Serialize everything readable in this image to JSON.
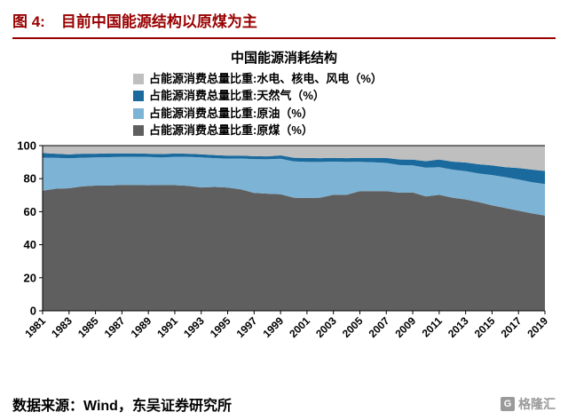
{
  "header": {
    "figure_label": "图 4:",
    "title": "目前中国能源结构以原煤为主",
    "accent_color": "#990000"
  },
  "chart": {
    "title": "中国能源消耗结构"
  },
  "source": {
    "text": "数据来源：Wind，东吴证券研究所"
  },
  "logo": {
    "glyph": "G",
    "text": "格隆汇"
  },
  "chart_data": {
    "type": "area",
    "stacked": true,
    "title": "中国能源消耗结构",
    "xlabel": "",
    "ylabel": "",
    "ylim": [
      0,
      100
    ],
    "y_ticks": [
      0,
      20,
      40,
      60,
      80,
      100
    ],
    "grid": false,
    "legend_position": "top",
    "legend_order": [
      3,
      2,
      1,
      0
    ],
    "x": [
      1981,
      1982,
      1983,
      1984,
      1985,
      1986,
      1987,
      1988,
      1989,
      1990,
      1991,
      1992,
      1993,
      1994,
      1995,
      1996,
      1997,
      1998,
      1999,
      2000,
      2001,
      2002,
      2003,
      2004,
      2005,
      2006,
      2007,
      2008,
      2009,
      2010,
      2011,
      2012,
      2013,
      2014,
      2015,
      2016,
      2017,
      2018,
      2019
    ],
    "x_tick_labels": [
      1981,
      1983,
      1985,
      1987,
      1989,
      1991,
      1993,
      1995,
      1997,
      1999,
      2001,
      2003,
      2005,
      2007,
      2009,
      2011,
      2013,
      2015,
      2017,
      2019
    ],
    "series": [
      {
        "name": "占能源消费总量比重:原煤（%）",
        "color": "#5f5f5f",
        "values": [
          72.7,
          73.9,
          74.2,
          75.3,
          75.8,
          75.8,
          76.2,
          76.2,
          76.0,
          76.2,
          76.1,
          75.7,
          74.7,
          75.0,
          74.6,
          73.5,
          71.4,
          70.9,
          70.6,
          68.5,
          68.3,
          68.5,
          70.2,
          70.2,
          72.4,
          72.4,
          72.5,
          71.5,
          71.6,
          69.2,
          70.2,
          68.5,
          67.4,
          65.8,
          63.8,
          62.2,
          60.6,
          59.0,
          57.7
        ]
      },
      {
        "name": "占能源消费总量比重:原油（%）",
        "color": "#7db3d5",
        "values": [
          20.0,
          18.7,
          18.1,
          17.4,
          17.1,
          17.2,
          17.0,
          17.0,
          17.1,
          16.6,
          17.1,
          17.5,
          18.2,
          17.4,
          17.5,
          18.7,
          20.4,
          20.8,
          21.5,
          22.0,
          21.8,
          21.6,
          20.1,
          19.9,
          17.8,
          17.5,
          17.0,
          16.7,
          16.4,
          17.4,
          16.8,
          17.0,
          17.1,
          17.3,
          18.4,
          18.7,
          18.9,
          18.9,
          19.0
        ]
      },
      {
        "name": "占能源消费总量比重:天然气（%）",
        "color": "#1a6a9d",
        "values": [
          2.8,
          2.5,
          2.4,
          2.4,
          2.2,
          2.3,
          2.1,
          2.1,
          2.0,
          2.1,
          2.0,
          1.9,
          1.9,
          1.9,
          1.8,
          1.8,
          1.8,
          1.8,
          2.0,
          2.2,
          2.4,
          2.3,
          2.3,
          2.3,
          2.4,
          2.7,
          3.0,
          3.4,
          3.5,
          4.0,
          4.6,
          4.8,
          5.3,
          5.6,
          5.8,
          6.1,
          6.9,
          7.6,
          8.0
        ]
      },
      {
        "name": "占能源消费总量比重:水电、核电、风电（%）",
        "color": "#bfbfbf",
        "values": [
          4.5,
          4.9,
          5.3,
          4.9,
          4.9,
          4.7,
          4.7,
          4.7,
          4.9,
          5.1,
          4.8,
          4.9,
          5.2,
          5.7,
          6.1,
          6.0,
          6.4,
          6.5,
          5.9,
          7.3,
          7.5,
          7.6,
          7.4,
          7.6,
          7.4,
          7.4,
          7.5,
          8.4,
          8.5,
          9.4,
          8.4,
          9.7,
          10.2,
          11.3,
          12.0,
          13.0,
          13.6,
          14.5,
          15.3
        ]
      }
    ]
  }
}
